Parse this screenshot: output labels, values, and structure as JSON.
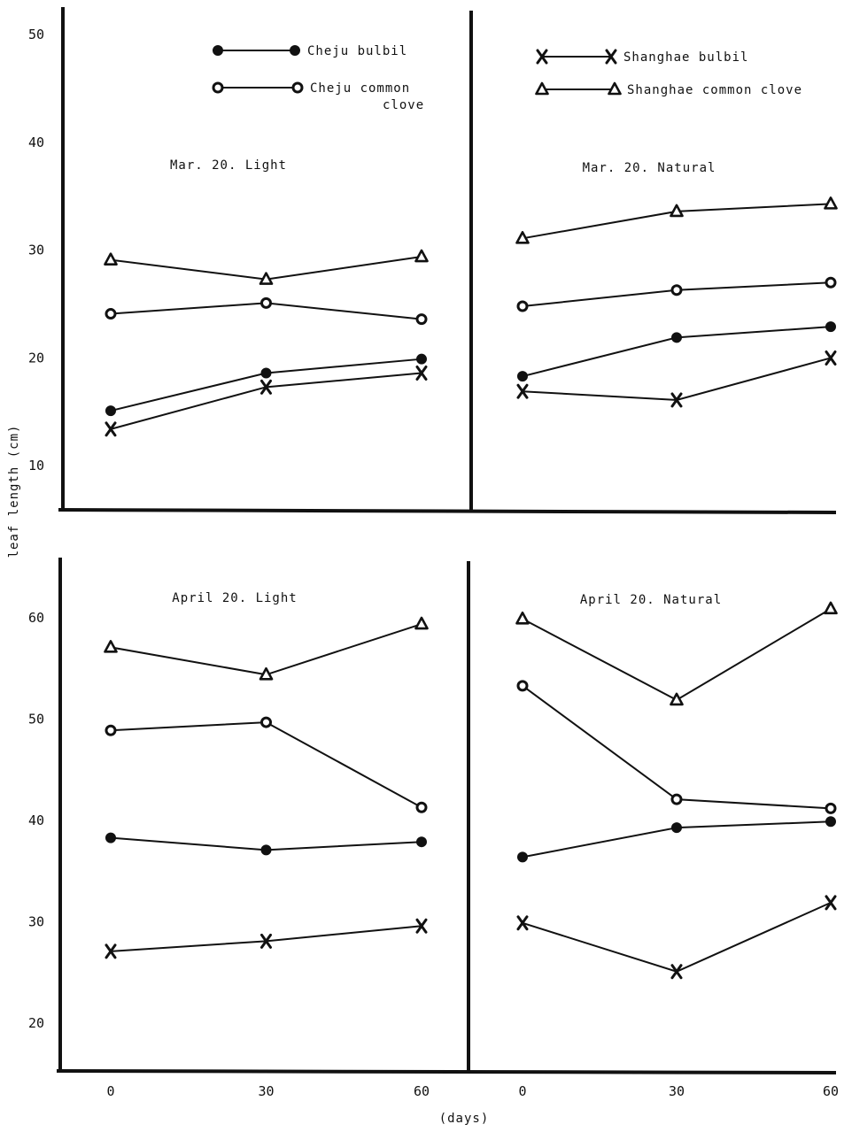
{
  "chart_data": {
    "type": "line",
    "ylabel": "leaf length (cm)",
    "xlabel": "(days)",
    "x": [
      0,
      30,
      60
    ],
    "xtick_labels": [
      "0",
      "30",
      "60"
    ],
    "legend": [
      {
        "name": "Cheju bulbil",
        "marker": "filled-circle"
      },
      {
        "name": "Cheju common clove",
        "marker": "open-circle"
      },
      {
        "name": "Shanghae bulbil",
        "marker": "x"
      },
      {
        "name": "Shanghae common clove",
        "marker": "triangle"
      }
    ],
    "panels": [
      {
        "title": "Mar. 20. Light",
        "ylim": [
          6,
          52
        ],
        "yticks": [
          10,
          20,
          30,
          40,
          50
        ],
        "series": [
          {
            "name": "Cheju bulbil",
            "values": [
              15,
              18.5,
              19.8
            ]
          },
          {
            "name": "Cheju common clove",
            "values": [
              24,
              25,
              23.5
            ]
          },
          {
            "name": "Shanghae bulbil",
            "values": [
              13.3,
              17.2,
              18.5
            ]
          },
          {
            "name": "Shanghae common clove",
            "values": [
              29,
              27.2,
              29.3
            ]
          }
        ]
      },
      {
        "title": "Mar. 20. Natural",
        "ylim": [
          6,
          52
        ],
        "yticks": [
          10,
          20,
          30,
          40,
          50
        ],
        "series": [
          {
            "name": "Cheju bulbil",
            "values": [
              18.2,
              21.8,
              22.8
            ]
          },
          {
            "name": "Cheju common clove",
            "values": [
              24.7,
              26.2,
              26.9
            ]
          },
          {
            "name": "Shanghae bulbil",
            "values": [
              16.8,
              16,
              19.9
            ]
          },
          {
            "name": "Shanghae common clove",
            "values": [
              31,
              33.5,
              34.2
            ]
          }
        ]
      },
      {
        "title": "April 20. Light",
        "ylim": [
          16,
          66
        ],
        "yticks": [
          20,
          30,
          40,
          50,
          60
        ],
        "series": [
          {
            "name": "Cheju bulbil",
            "values": [
              38.2,
              37,
              37.8
            ]
          },
          {
            "name": "Cheju common clove",
            "values": [
              48.8,
              49.6,
              41.2
            ]
          },
          {
            "name": "Shanghae bulbil",
            "values": [
              27,
              28,
              29.5
            ]
          },
          {
            "name": "Shanghae common clove",
            "values": [
              57,
              54.3,
              59.3
            ]
          }
        ]
      },
      {
        "title": "April 20. Natural",
        "ylim": [
          16,
          66
        ],
        "yticks": [
          20,
          30,
          40,
          50,
          60
        ],
        "series": [
          {
            "name": "Cheju bulbil",
            "values": [
              36.3,
              39.2,
              39.8
            ]
          },
          {
            "name": "Cheju common clove",
            "values": [
              53.2,
              42,
              41.1
            ]
          },
          {
            "name": "Shanghae bulbil",
            "values": [
              29.8,
              25,
              31.8
            ]
          },
          {
            "name": "Shanghae common clove",
            "values": [
              59.8,
              51.8,
              60.8
            ]
          }
        ]
      }
    ]
  }
}
